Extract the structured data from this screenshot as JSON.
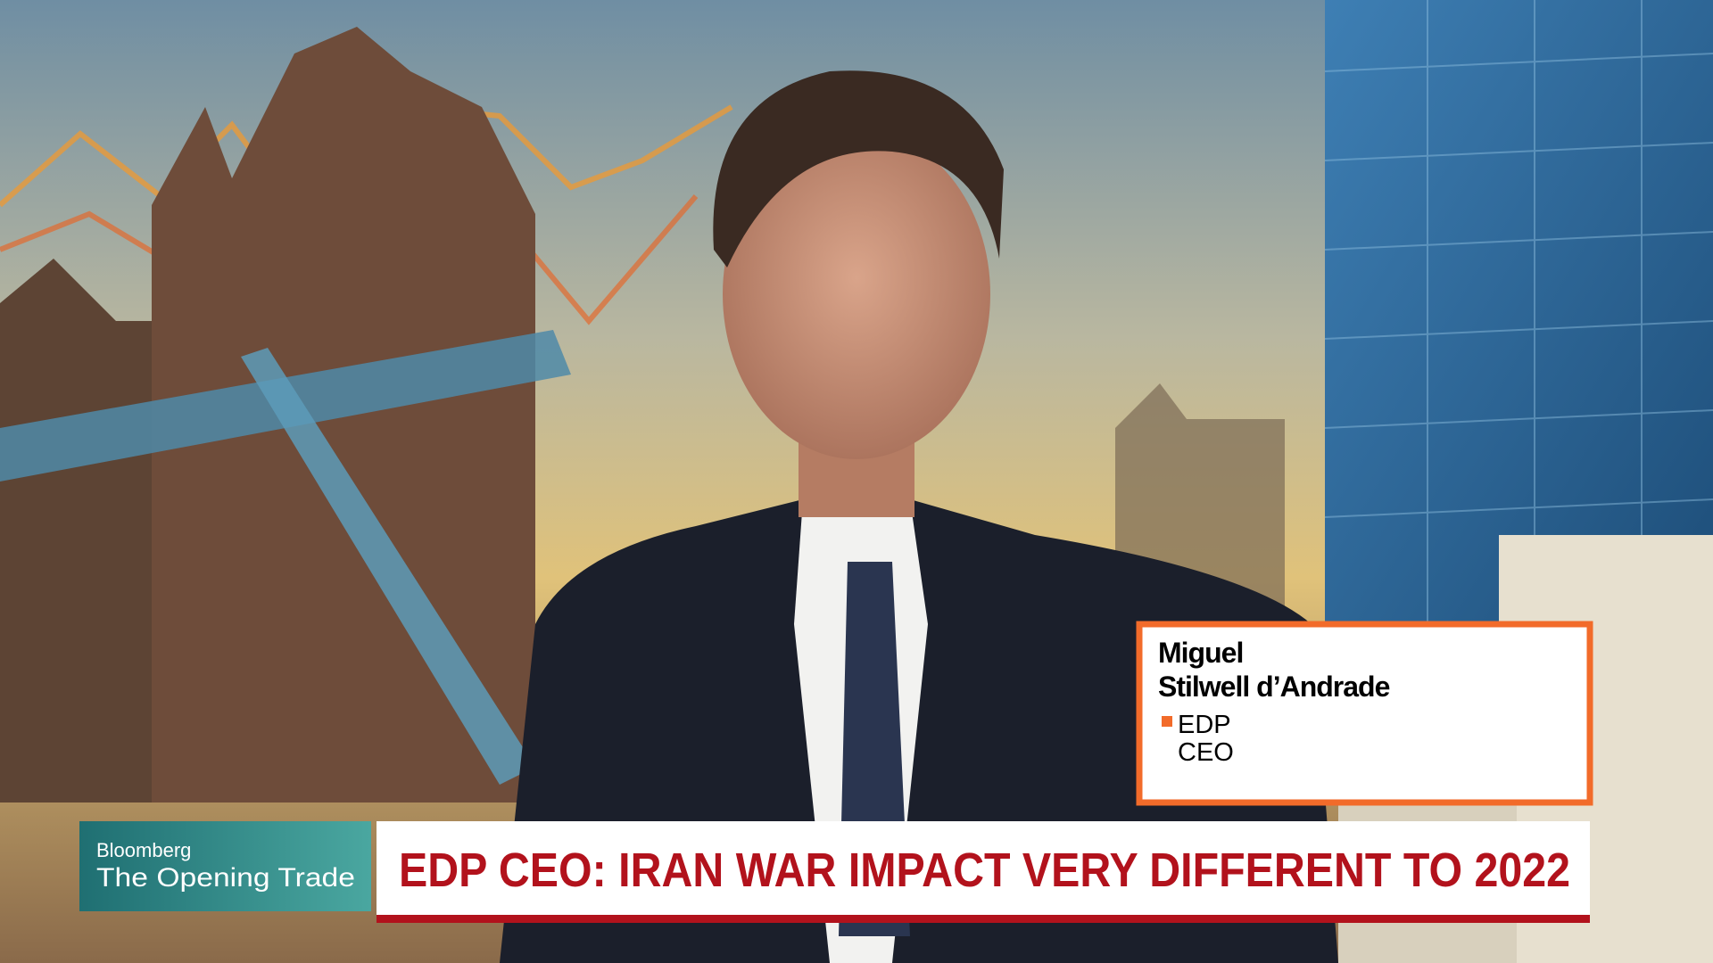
{
  "lower_third": {
    "guest_name_line1": "Miguel",
    "guest_name_line2": "Stilwell d’Andrade",
    "guest_company": "EDP",
    "guest_role": "CEO"
  },
  "show": {
    "network": "Bloomberg",
    "program": "The Opening Trade"
  },
  "headline": "EDP CEO: IRAN WAR IMPACT VERY DIFFERENT TO 2022"
}
